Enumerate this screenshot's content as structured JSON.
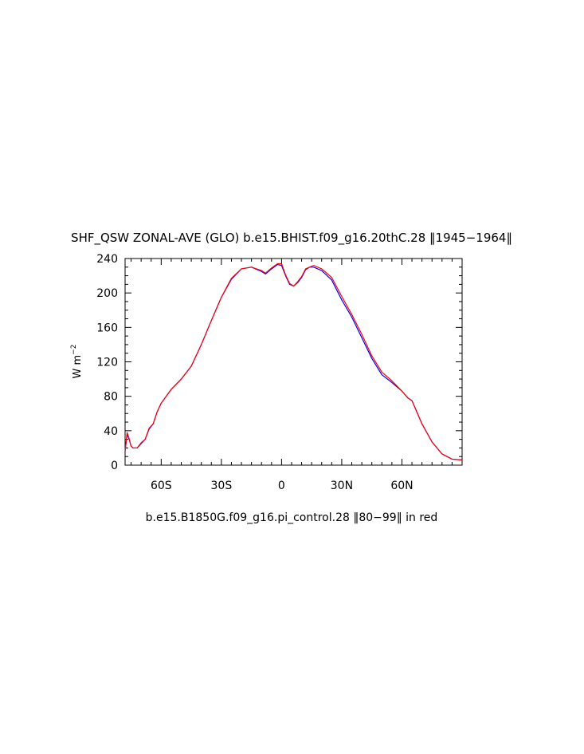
{
  "chart_data": {
    "type": "line",
    "title": "SHF_QSW ZONAL-AVE (GLO) b.e15.BHIST.f09_g16.20thC.28 ‖1945−1964‖",
    "xlabel": "",
    "ylabel": {
      "base": "W m",
      "superscript": "−2"
    },
    "annotation": "b.e15.B1850G.f09_g16.pi_control.28 ‖80−99‖ in red",
    "xlim": [
      -78,
      90
    ],
    "ylim": [
      0,
      240
    ],
    "x_ticks": [
      {
        "value": -60,
        "label": "60S"
      },
      {
        "value": -30,
        "label": "30S"
      },
      {
        "value": 0,
        "label": "0"
      },
      {
        "value": 30,
        "label": "30N"
      },
      {
        "value": 60,
        "label": "60N"
      }
    ],
    "y_ticks": [
      {
        "value": 0,
        "label": "0"
      },
      {
        "value": 40,
        "label": "40"
      },
      {
        "value": 80,
        "label": "80"
      },
      {
        "value": 120,
        "label": "120"
      },
      {
        "value": 160,
        "label": "160"
      },
      {
        "value": 200,
        "label": "200"
      },
      {
        "value": 240,
        "label": "240"
      }
    ],
    "grid": false,
    "colors": {
      "hist": "#0000ff",
      "control": "#ff0000"
    },
    "x": [
      -78,
      -77,
      -76,
      -75,
      -74,
      -72,
      -70,
      -68,
      -66,
      -64,
      -62,
      -60,
      -55,
      -50,
      -45,
      -40,
      -35,
      -30,
      -25,
      -20,
      -15,
      -10,
      -8,
      -5,
      -2,
      0,
      2,
      4,
      6,
      8,
      10,
      12,
      14,
      16,
      20,
      25,
      30,
      35,
      40,
      45,
      50,
      55,
      60,
      63,
      65,
      70,
      75,
      80,
      85,
      90
    ],
    "series": [
      {
        "color": "blue",
        "values": [
          16,
          36,
          30,
          22,
          20,
          20,
          25,
          30,
          42,
          48,
          62,
          72,
          88,
          100,
          115,
          140,
          168,
          195,
          216,
          228,
          230,
          225,
          222,
          228,
          233,
          232,
          220,
          210,
          208,
          212,
          218,
          227,
          230,
          230,
          226,
          215,
          192,
          172,
          148,
          124,
          105,
          96,
          86,
          78,
          75,
          48,
          27,
          13,
          7,
          6
        ]
      },
      {
        "color": "red",
        "values": [
          16,
          38,
          31,
          22,
          20,
          20,
          26,
          30,
          43,
          48,
          62,
          72,
          88,
          100,
          115,
          140,
          168,
          195,
          217,
          228,
          230,
          226,
          223,
          229,
          234,
          234,
          221,
          211,
          208,
          213,
          219,
          228,
          230,
          232,
          228,
          218,
          196,
          175,
          152,
          127,
          108,
          98,
          86,
          78,
          75,
          48,
          27,
          13,
          7,
          6
        ]
      }
    ]
  }
}
